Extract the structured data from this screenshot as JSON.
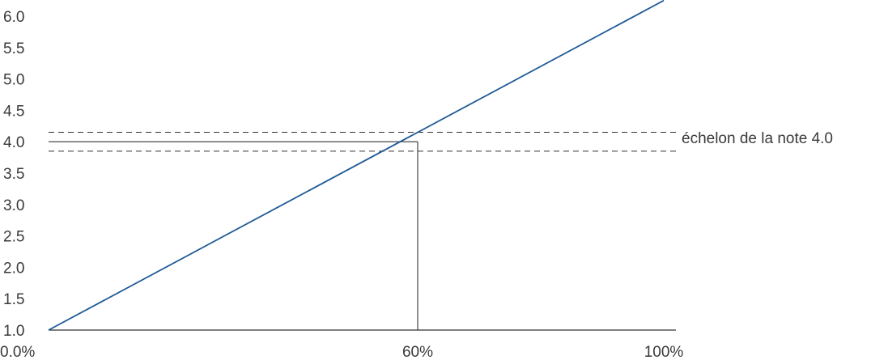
{
  "chart_data": {
    "type": "line",
    "x_tick_labels": [
      "0.0%",
      "60%",
      "100%"
    ],
    "y_tick_labels": [
      "1.0",
      "1.5",
      "2.0",
      "2.5",
      "3.0",
      "3.5",
      "4.0",
      "4.5",
      "5.0",
      "5.5",
      "6.0"
    ],
    "x": [
      0,
      100
    ],
    "y": [
      1.0,
      6.25
    ],
    "xlim": [
      0,
      100
    ],
    "ylim": [
      1.0,
      6.0
    ],
    "grid": false,
    "annotations": {
      "grade_level": 4.0,
      "grade_x": 60,
      "band_upper": 4.15,
      "band_lower": 3.85,
      "band_label": "échelon de la note 4.0"
    },
    "colors": {
      "series": "#1f5a96",
      "reference": "#333333",
      "axis": "#333333"
    }
  }
}
